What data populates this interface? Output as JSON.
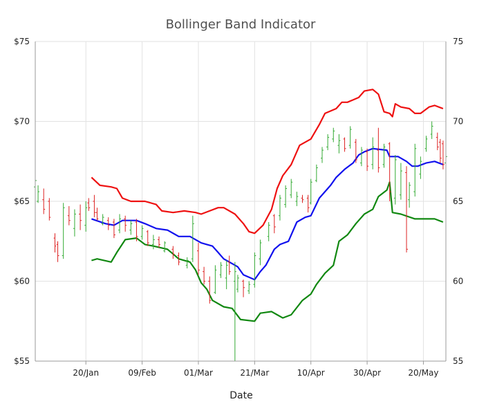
{
  "chart_data": {
    "type": "line",
    "title": "Bollinger Band Indicator",
    "xlabel": "Date",
    "ylabel": "",
    "ylim": [
      55,
      75
    ],
    "y_ticks_left": [
      "$55",
      "$60",
      "$65",
      "$70",
      "$75"
    ],
    "y_ticks_right": [
      "55",
      "60",
      "65",
      "70",
      "75"
    ],
    "y_tick_values": [
      55,
      60,
      65,
      70,
      75
    ],
    "x_domain": [
      "2013-01-02",
      "2013-05-28"
    ],
    "x_ticks": [
      {
        "date": "2013-01-20",
        "label": "20/Jan"
      },
      {
        "date": "2013-02-09",
        "label": "09/Feb"
      },
      {
        "date": "2013-03-01",
        "label": "01/Mar"
      },
      {
        "date": "2013-03-21",
        "label": "21/Mar"
      },
      {
        "date": "2013-04-10",
        "label": "10/Apr"
      },
      {
        "date": "2013-04-30",
        "label": "30/Apr"
      },
      {
        "date": "2013-05-20",
        "label": "20/May"
      }
    ],
    "grid": true,
    "colors": {
      "upper": "#ee1111",
      "middle": "#1111ee",
      "lower": "#118811",
      "up_bar": "#33aa33",
      "down_bar": "#dd2222",
      "grid": "#e2e2e2",
      "axis": "#9a9a9a"
    },
    "series": [],
    "upper_band": [
      [
        "2013-01-22",
        66.5
      ],
      [
        "2013-01-25",
        66.0
      ],
      [
        "2013-01-29",
        65.9
      ],
      [
        "2013-01-31",
        65.8
      ],
      [
        "2013-02-02",
        65.2
      ],
      [
        "2013-02-05",
        65.0
      ],
      [
        "2013-02-10",
        65.0
      ],
      [
        "2013-02-14",
        64.8
      ],
      [
        "2013-02-16",
        64.4
      ],
      [
        "2013-02-20",
        64.3
      ],
      [
        "2013-02-24",
        64.4
      ],
      [
        "2013-02-28",
        64.3
      ],
      [
        "2013-03-02",
        64.2
      ],
      [
        "2013-03-05",
        64.4
      ],
      [
        "2013-03-08",
        64.6
      ],
      [
        "2013-03-10",
        64.6
      ],
      [
        "2013-03-14",
        64.2
      ],
      [
        "2013-03-17",
        63.6
      ],
      [
        "2013-03-19",
        63.1
      ],
      [
        "2013-03-21",
        63.0
      ],
      [
        "2013-03-24",
        63.5
      ],
      [
        "2013-03-27",
        64.5
      ],
      [
        "2013-03-29",
        65.8
      ],
      [
        "2013-03-31",
        66.6
      ],
      [
        "2013-04-03",
        67.3
      ],
      [
        "2013-04-06",
        68.5
      ],
      [
        "2013-04-10",
        68.9
      ],
      [
        "2013-04-13",
        69.8
      ],
      [
        "2013-04-15",
        70.5
      ],
      [
        "2013-04-19",
        70.8
      ],
      [
        "2013-04-21",
        71.2
      ],
      [
        "2013-04-23",
        71.2
      ],
      [
        "2013-04-27",
        71.5
      ],
      [
        "2013-04-29",
        71.9
      ],
      [
        "2013-05-02",
        72.0
      ],
      [
        "2013-05-04",
        71.7
      ],
      [
        "2013-05-06",
        70.6
      ],
      [
        "2013-05-08",
        70.5
      ],
      [
        "2013-05-09",
        70.3
      ],
      [
        "2013-05-10",
        71.1
      ],
      [
        "2013-05-12",
        70.9
      ],
      [
        "2013-05-15",
        70.8
      ],
      [
        "2013-05-17",
        70.5
      ],
      [
        "2013-05-19",
        70.5
      ],
      [
        "2013-05-22",
        70.9
      ],
      [
        "2013-05-24",
        71.0
      ],
      [
        "2013-05-27",
        70.8
      ]
    ],
    "middle_band": [
      [
        "2013-01-22",
        63.9
      ],
      [
        "2013-01-27",
        63.6
      ],
      [
        "2013-01-30",
        63.5
      ],
      [
        "2013-02-02",
        63.8
      ],
      [
        "2013-02-07",
        63.8
      ],
      [
        "2013-02-10",
        63.6
      ],
      [
        "2013-02-14",
        63.3
      ],
      [
        "2013-02-18",
        63.2
      ],
      [
        "2013-02-22",
        62.8
      ],
      [
        "2013-02-26",
        62.8
      ],
      [
        "2013-02-28",
        62.6
      ],
      [
        "2013-03-02",
        62.4
      ],
      [
        "2013-03-04",
        62.3
      ],
      [
        "2013-03-06",
        62.2
      ],
      [
        "2013-03-08",
        61.8
      ],
      [
        "2013-03-10",
        61.4
      ],
      [
        "2013-03-13",
        61.1
      ],
      [
        "2013-03-15",
        60.9
      ],
      [
        "2013-03-17",
        60.4
      ],
      [
        "2013-03-21",
        60.1
      ],
      [
        "2013-03-23",
        60.6
      ],
      [
        "2013-03-25",
        61.0
      ],
      [
        "2013-03-28",
        62.0
      ],
      [
        "2013-03-30",
        62.3
      ],
      [
        "2013-04-02",
        62.5
      ],
      [
        "2013-04-05",
        63.7
      ],
      [
        "2013-04-08",
        64.0
      ],
      [
        "2013-04-10",
        64.1
      ],
      [
        "2013-04-13",
        65.2
      ],
      [
        "2013-04-17",
        66.0
      ],
      [
        "2013-04-19",
        66.5
      ],
      [
        "2013-04-22",
        67.0
      ],
      [
        "2013-04-25",
        67.4
      ],
      [
        "2013-04-27",
        67.9
      ],
      [
        "2013-04-29",
        68.1
      ],
      [
        "2013-05-02",
        68.3
      ],
      [
        "2013-05-07",
        68.2
      ],
      [
        "2013-05-08",
        67.8
      ],
      [
        "2013-05-11",
        67.8
      ],
      [
        "2013-05-14",
        67.5
      ],
      [
        "2013-05-16",
        67.2
      ],
      [
        "2013-05-18",
        67.2
      ],
      [
        "2013-05-21",
        67.4
      ],
      [
        "2013-05-24",
        67.5
      ],
      [
        "2013-05-27",
        67.3
      ]
    ],
    "lower_band": [
      [
        "2013-01-22",
        61.3
      ],
      [
        "2013-01-24",
        61.4
      ],
      [
        "2013-01-29",
        61.2
      ],
      [
        "2013-01-31",
        61.8
      ],
      [
        "2013-02-03",
        62.6
      ],
      [
        "2013-02-07",
        62.7
      ],
      [
        "2013-02-10",
        62.3
      ],
      [
        "2013-02-13",
        62.2
      ],
      [
        "2013-02-18",
        62.0
      ],
      [
        "2013-02-20",
        61.7
      ],
      [
        "2013-02-22",
        61.4
      ],
      [
        "2013-02-26",
        61.2
      ],
      [
        "2013-02-28",
        60.7
      ],
      [
        "2013-03-02",
        59.9
      ],
      [
        "2013-03-04",
        59.5
      ],
      [
        "2013-03-06",
        58.8
      ],
      [
        "2013-03-10",
        58.4
      ],
      [
        "2013-03-13",
        58.3
      ],
      [
        "2013-03-16",
        57.6
      ],
      [
        "2013-03-21",
        57.5
      ],
      [
        "2013-03-23",
        58.0
      ],
      [
        "2013-03-27",
        58.1
      ],
      [
        "2013-03-29",
        57.9
      ],
      [
        "2013-03-31",
        57.7
      ],
      [
        "2013-04-03",
        57.9
      ],
      [
        "2013-04-07",
        58.8
      ],
      [
        "2013-04-10",
        59.2
      ],
      [
        "2013-04-12",
        59.8
      ],
      [
        "2013-04-15",
        60.5
      ],
      [
        "2013-04-18",
        61.0
      ],
      [
        "2013-04-20",
        62.5
      ],
      [
        "2013-04-23",
        62.9
      ],
      [
        "2013-04-26",
        63.6
      ],
      [
        "2013-04-29",
        64.2
      ],
      [
        "2013-05-02",
        64.5
      ],
      [
        "2013-05-04",
        65.3
      ],
      [
        "2013-05-07",
        65.7
      ],
      [
        "2013-05-08",
        66.2
      ],
      [
        "2013-05-09",
        64.3
      ],
      [
        "2013-05-12",
        64.2
      ],
      [
        "2013-05-17",
        63.9
      ],
      [
        "2013-05-24",
        63.9
      ],
      [
        "2013-05-27",
        63.7
      ]
    ],
    "price_bars": [
      [
        "2013-01-02",
        65.8,
        67.2,
        65.9,
        66.3
      ],
      [
        "2013-01-03",
        64.9,
        66.0,
        65.0,
        65.6
      ],
      [
        "2013-01-05",
        64.2,
        65.8,
        65.1,
        64.5
      ],
      [
        "2013-01-07",
        63.8,
        65.2,
        65.0,
        64.0
      ],
      [
        "2013-01-09",
        61.8,
        63.0,
        62.7,
        62.2
      ],
      [
        "2013-01-10",
        61.2,
        62.5,
        62.3,
        61.6
      ],
      [
        "2013-01-12",
        61.4,
        64.9,
        61.6,
        64.6
      ],
      [
        "2013-01-14",
        63.5,
        64.7,
        64.1,
        63.8
      ],
      [
        "2013-01-16",
        62.8,
        64.5,
        63.3,
        64.2
      ],
      [
        "2013-01-18",
        63.2,
        64.8,
        64.2,
        63.8
      ],
      [
        "2013-01-20",
        63.1,
        65.0,
        63.5,
        64.6
      ],
      [
        "2013-01-21",
        64.4,
        65.2,
        64.9,
        64.6
      ],
      [
        "2013-01-23",
        64.0,
        65.4,
        65.0,
        64.3
      ],
      [
        "2013-01-24",
        63.8,
        64.6,
        64.3,
        63.9
      ],
      [
        "2013-01-26",
        63.5,
        64.2,
        63.6,
        64.0
      ],
      [
        "2013-01-28",
        63.2,
        64.0,
        63.8,
        63.5
      ],
      [
        "2013-01-30",
        62.7,
        63.9,
        63.7,
        62.9
      ],
      [
        "2013-02-01",
        63.0,
        64.2,
        63.2,
        63.9
      ],
      [
        "2013-02-03",
        63.1,
        64.1,
        63.9,
        63.5
      ],
      [
        "2013-02-05",
        62.9,
        63.8,
        63.2,
        63.6
      ],
      [
        "2013-02-07",
        62.5,
        63.9,
        63.7,
        62.8
      ],
      [
        "2013-02-09",
        62.6,
        63.5,
        62.8,
        63.3
      ],
      [
        "2013-02-11",
        62.2,
        63.2,
        63.1,
        62.4
      ],
      [
        "2013-02-13",
        62.0,
        62.9,
        62.3,
        62.6
      ],
      [
        "2013-02-15",
        62.1,
        62.8,
        62.6,
        62.3
      ],
      [
        "2013-02-17",
        61.8,
        62.5,
        61.9,
        62.4
      ],
      [
        "2013-02-20",
        61.4,
        62.2,
        62.0,
        61.7
      ],
      [
        "2013-02-22",
        61.0,
        61.8,
        61.6,
        61.2
      ],
      [
        "2013-02-25",
        60.8,
        61.5,
        61.0,
        61.3
      ],
      [
        "2013-02-27",
        61.2,
        64.1,
        61.4,
        63.6
      ],
      [
        "2013-03-01",
        60.4,
        62.4,
        61.9,
        60.7
      ],
      [
        "2013-03-03",
        59.8,
        60.9,
        60.6,
        60.0
      ],
      [
        "2013-03-05",
        58.6,
        60.3,
        60.0,
        58.8
      ],
      [
        "2013-03-07",
        59.2,
        61.0,
        59.3,
        60.7
      ],
      [
        "2013-03-09",
        60.2,
        61.2,
        60.4,
        61.0
      ],
      [
        "2013-03-11",
        59.5,
        61.3,
        60.2,
        61.0
      ],
      [
        "2013-03-12",
        60.4,
        61.6,
        61.2,
        60.6
      ],
      [
        "2013-03-14",
        55.0,
        61.2,
        60.0,
        60.6
      ],
      [
        "2013-03-15",
        59.3,
        60.4,
        59.5,
        60.2
      ],
      [
        "2013-03-17",
        59.0,
        60.1,
        60.0,
        59.6
      ],
      [
        "2013-03-19",
        59.2,
        60.0,
        59.4,
        59.8
      ],
      [
        "2013-03-21",
        59.6,
        61.8,
        59.8,
        61.6
      ],
      [
        "2013-03-23",
        61.0,
        62.6,
        61.4,
        62.4
      ],
      [
        "2013-03-26",
        62.5,
        63.7,
        62.8,
        63.5
      ],
      [
        "2013-03-28",
        63.0,
        64.2,
        64.1,
        63.4
      ],
      [
        "2013-03-30",
        63.8,
        65.4,
        64.1,
        65.2
      ],
      [
        "2013-04-01",
        64.6,
        66.0,
        64.8,
        65.8
      ],
      [
        "2013-04-03",
        65.2,
        66.4,
        65.4,
        66.2
      ],
      [
        "2013-04-05",
        64.7,
        65.6,
        65.0,
        65.3
      ],
      [
        "2013-04-07",
        64.9,
        65.4,
        65.2,
        65.1
      ],
      [
        "2013-04-09",
        64.3,
        65.4,
        65.2,
        64.6
      ],
      [
        "2013-04-10",
        64.8,
        66.4,
        64.9,
        66.2
      ],
      [
        "2013-04-12",
        66.2,
        67.3,
        66.3,
        67.1
      ],
      [
        "2013-04-14",
        67.4,
        68.4,
        67.7,
        68.2
      ],
      [
        "2013-04-16",
        68.2,
        69.2,
        68.4,
        69.0
      ],
      [
        "2013-04-18",
        68.7,
        69.6,
        68.9,
        69.4
      ],
      [
        "2013-04-20",
        68.0,
        69.2,
        68.5,
        68.8
      ],
      [
        "2013-04-22",
        68.1,
        69.0,
        68.9,
        68.3
      ],
      [
        "2013-04-24",
        68.3,
        69.7,
        68.5,
        69.5
      ],
      [
        "2013-04-26",
        67.4,
        68.9,
        68.7,
        67.6
      ],
      [
        "2013-04-28",
        67.2,
        68.4,
        67.4,
        68.2
      ],
      [
        "2013-04-30",
        66.9,
        68.3,
        68.1,
        67.2
      ],
      [
        "2013-05-02",
        67.0,
        69.0,
        67.3,
        68.4
      ],
      [
        "2013-05-04",
        66.8,
        69.6,
        68.2,
        67.1
      ],
      [
        "2013-05-06",
        67.1,
        68.6,
        67.3,
        68.4
      ],
      [
        "2013-05-08",
        65.0,
        68.7,
        68.6,
        65.6
      ],
      [
        "2013-05-10",
        64.8,
        67.9,
        65.2,
        67.6
      ],
      [
        "2013-05-12",
        65.1,
        67.4,
        65.4,
        66.9
      ],
      [
        "2013-05-14",
        61.8,
        67.2,
        66.8,
        62.0
      ],
      [
        "2013-05-15",
        64.6,
        66.2,
        65.1,
        66.0
      ],
      [
        "2013-05-17",
        65.3,
        68.6,
        65.6,
        68.3
      ],
      [
        "2013-05-19",
        66.4,
        67.8,
        66.7,
        67.5
      ],
      [
        "2013-05-21",
        68.1,
        69.1,
        68.3,
        68.9
      ],
      [
        "2013-05-23",
        68.9,
        70.0,
        69.2,
        69.7
      ],
      [
        "2013-05-25",
        68.2,
        69.3,
        69.0,
        68.4
      ],
      [
        "2013-05-26",
        67.4,
        68.9,
        68.7,
        67.7
      ],
      [
        "2013-05-27",
        67.0,
        68.8,
        68.6,
        67.3
      ],
      [
        "2013-05-28",
        67.2,
        67.9,
        67.4,
        67.8
      ]
    ]
  }
}
